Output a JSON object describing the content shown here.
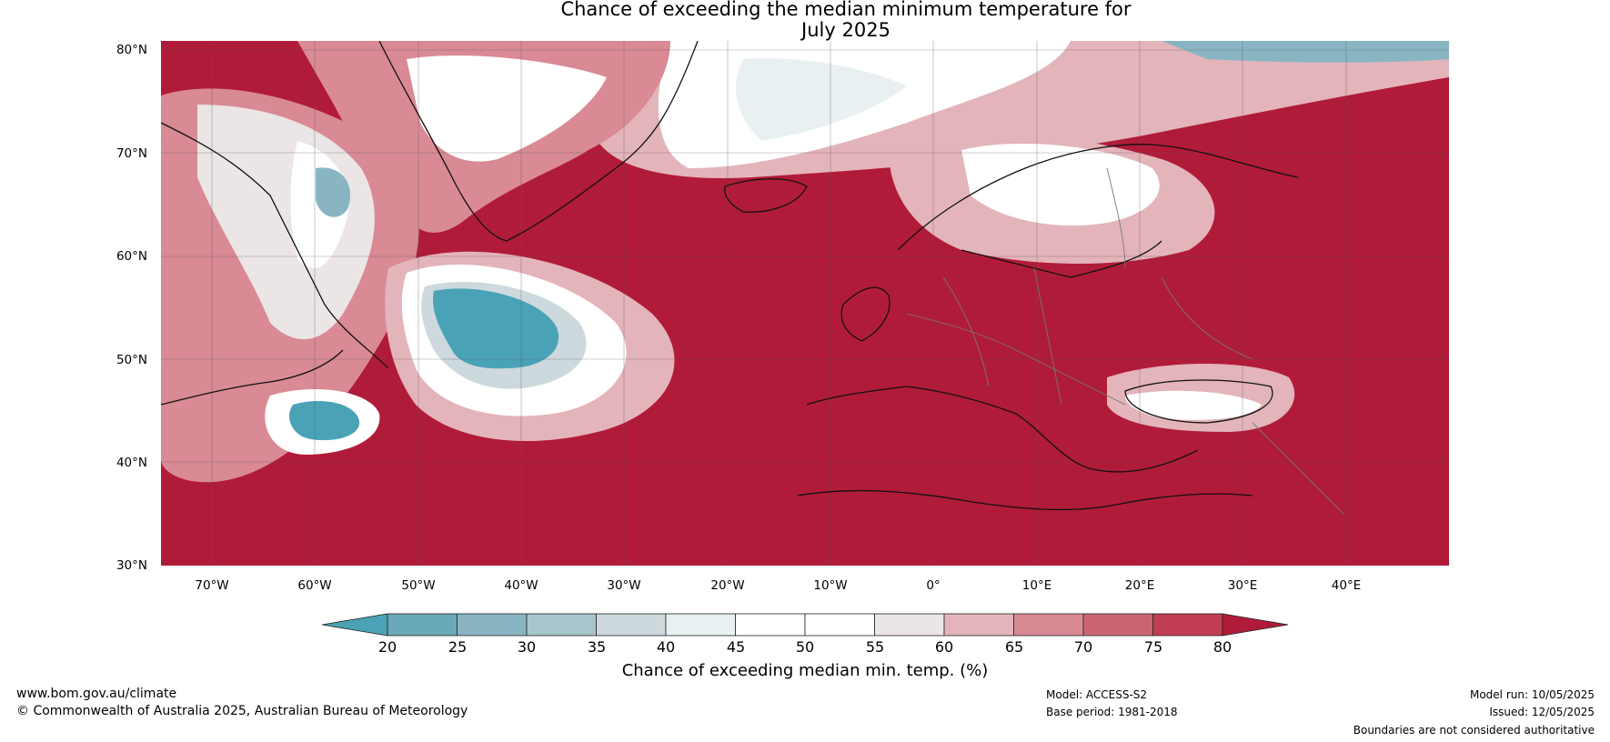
{
  "title": {
    "line1": "Chance of exceeding the median minimum temperature for",
    "line2": "July 2025"
  },
  "axes": {
    "lat_labels": [
      "80°N",
      "70°N",
      "60°N",
      "50°N",
      "40°N",
      "30°N"
    ],
    "lon_labels": [
      "70°W",
      "60°W",
      "50°W",
      "40°W",
      "30°W",
      "20°W",
      "10°W",
      "0°",
      "10°E",
      "20°E",
      "30°E",
      "40°E"
    ]
  },
  "colorbar": {
    "ticks": [
      "20",
      "25",
      "30",
      "35",
      "40",
      "45",
      "50",
      "55",
      "60",
      "65",
      "70",
      "75",
      "80"
    ],
    "label": "Chance of exceeding median min. temp. (%)",
    "colors": [
      "#4aa2b6",
      "#69a9b9",
      "#89b5c3",
      "#a9c5cc",
      "#cdd9dc",
      "#e9f0f1",
      "#ffffff",
      "#ffffff",
      "#ebe5e6",
      "#e3b4ba",
      "#d98a94",
      "#cb6471",
      "#c13e52",
      "#b11b3a"
    ]
  },
  "footer": {
    "website": "www.bom.gov.au/climate",
    "copyright": "© Commonwealth of Australia 2025, Australian Bureau of Meteorology",
    "model": "Model: ACCESS-S2",
    "base_period": "Base period: 1981-2018",
    "model_run": "Model run: 10/05/2025",
    "issued": "Issued: 12/05/2025",
    "disclaimer": "Boundaries are not considered authoritative"
  }
}
